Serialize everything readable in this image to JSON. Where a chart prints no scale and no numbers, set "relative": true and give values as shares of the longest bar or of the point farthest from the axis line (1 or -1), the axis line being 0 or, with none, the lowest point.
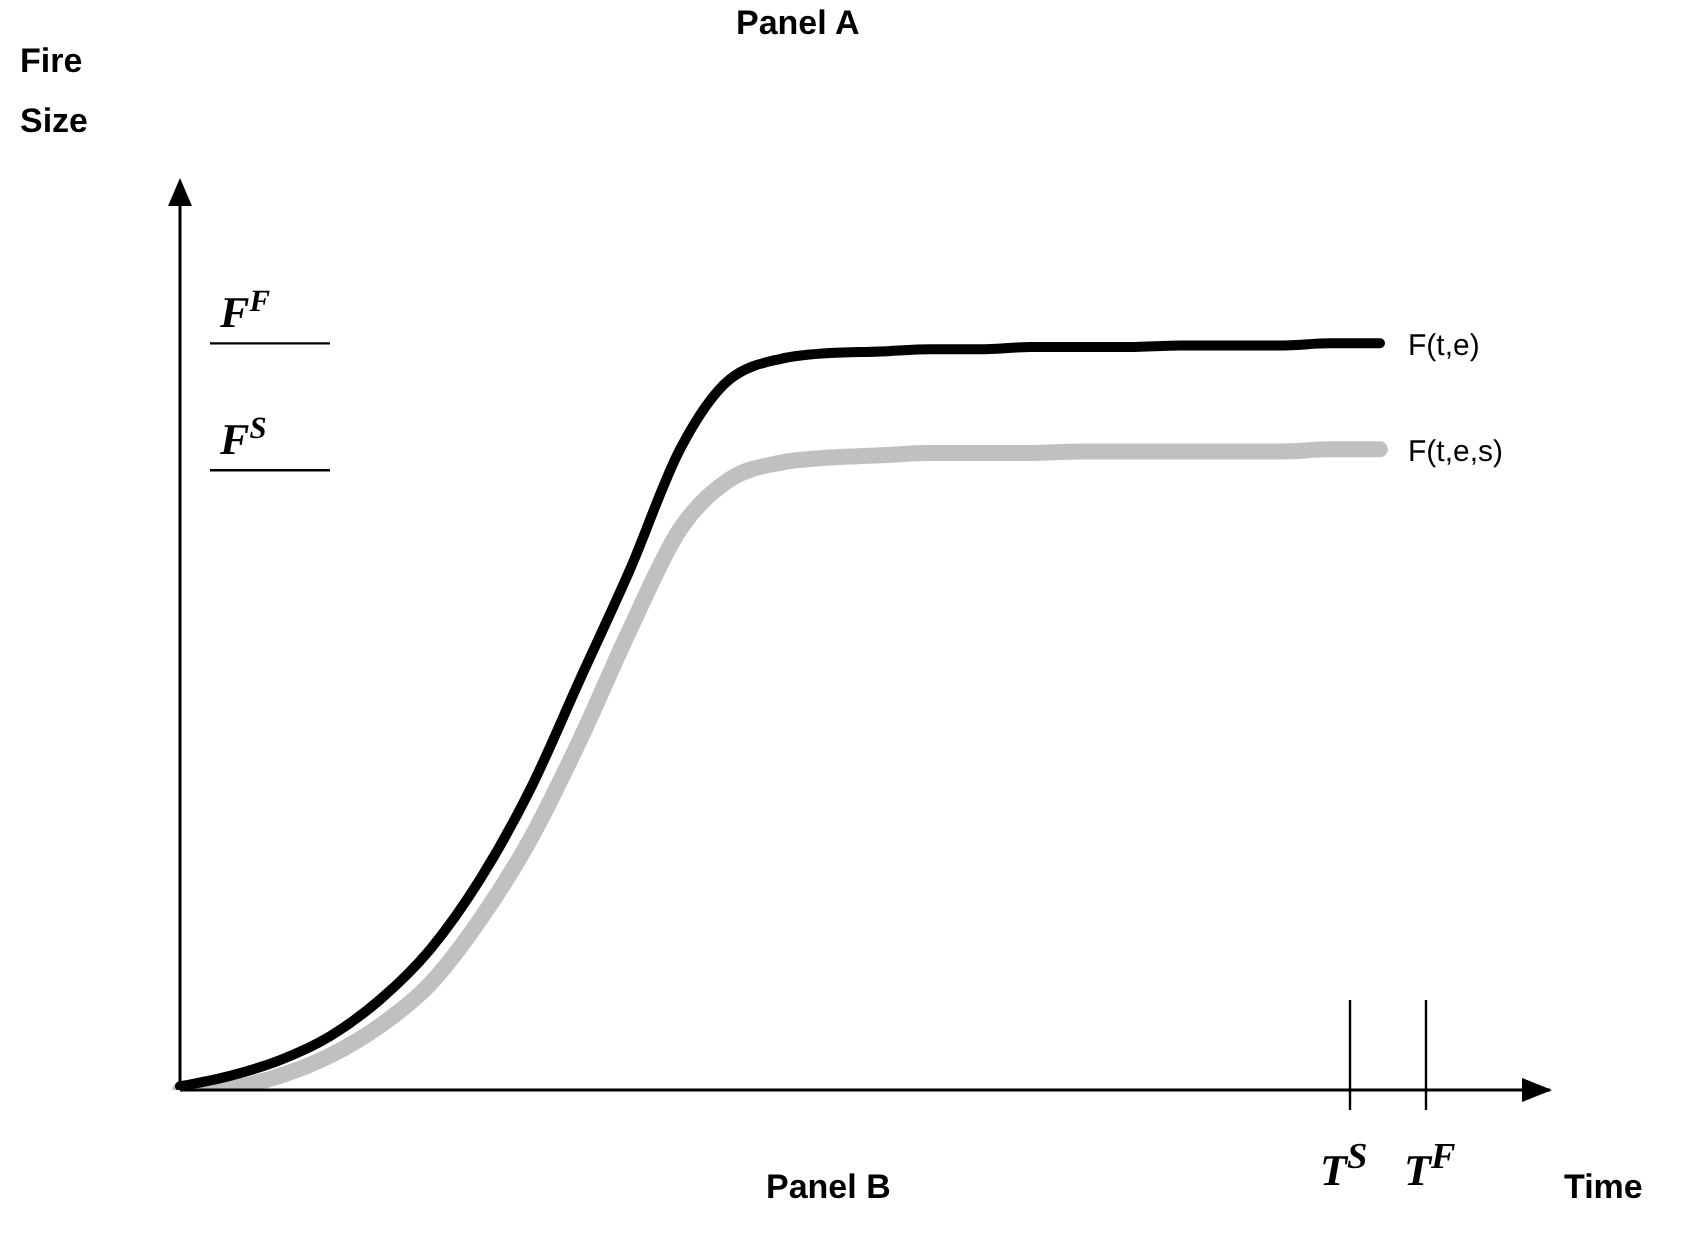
{
  "chart_data": {
    "type": "line",
    "title": "Panel A",
    "relative": true,
    "marker": "none",
    "line_style": "solid",
    "categories": [
      null,
      null,
      null,
      null,
      null,
      null,
      null,
      null,
      null,
      null,
      null,
      null,
      null,
      null,
      null,
      null,
      null,
      null,
      null,
      null,
      null,
      null,
      null,
      null,
      null
    ],
    "series": [
      {
        "name": "F(t,e,s)",
        "color": "#c0c0c0",
        "values": [
          0,
          0.003,
          0.019,
          0.046,
          0.086,
          0.142,
          0.228,
          0.335,
          0.469,
          0.617,
          0.751,
          0.818,
          0.84,
          0.847,
          0.85,
          0.853,
          0.853,
          0.853,
          0.855,
          0.855,
          0.855,
          0.855,
          0.855,
          0.858,
          0.858
        ]
      },
      {
        "name": "F(t,e)",
        "color": "#000000",
        "values": [
          0.005,
          0.019,
          0.04,
          0.072,
          0.121,
          0.188,
          0.282,
          0.402,
          0.55,
          0.697,
          0.858,
          0.952,
          0.979,
          0.987,
          0.989,
          0.992,
          0.992,
          0.995,
          0.995,
          0.995,
          0.997,
          0.997,
          0.997,
          1,
          1
        ]
      }
    ],
    "ref_lines": [
      {
        "axis": "y",
        "value": 1,
        "label": "F$^{F}$"
      },
      {
        "axis": "y",
        "value": 0.83,
        "label": "F$^{S}$"
      }
    ],
    "annotations": [
      "T$^{S}$",
      "T$^{F}$",
      "Panel B",
      "Time",
      "Fire Size"
    ]
  }
}
